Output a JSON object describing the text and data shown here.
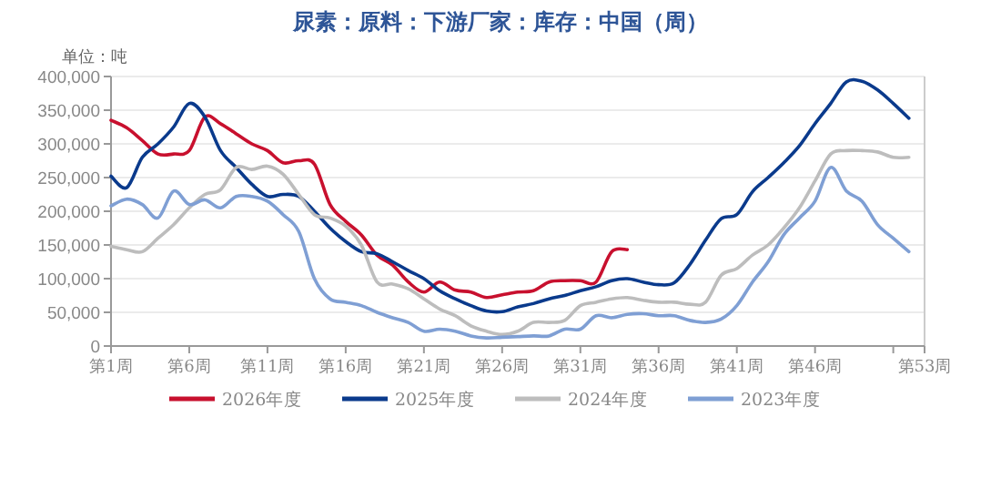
{
  "chart_data": {
    "type": "line",
    "title": "尿素：原料：下游厂家：库存：中国（周）",
    "ylabel": "单位：吨",
    "categories": [
      "第1周",
      null,
      null,
      null,
      null,
      "第6周",
      null,
      null,
      null,
      null,
      "第11周",
      null,
      null,
      null,
      null,
      "第16周",
      null,
      null,
      null,
      null,
      "第21周",
      null,
      null,
      null,
      null,
      "第26周",
      null,
      null,
      null,
      null,
      "第31周",
      null,
      null,
      null,
      null,
      "第36周",
      null,
      null,
      null,
      null,
      "第41周",
      null,
      null,
      null,
      null,
      "第46周",
      null,
      null,
      null,
      null,
      null,
      null,
      "第53周"
    ],
    "ylim": [
      0,
      400000
    ],
    "yticks": [
      0,
      {
        "value": 50000,
        "label": "50,000"
      },
      {
        "value": 100000,
        "label": "100,000"
      },
      {
        "value": 150000,
        "label": "150,000"
      },
      {
        "value": 200000,
        "label": "200,000"
      },
      {
        "value": 250000,
        "label": "250,000"
      },
      {
        "value": 300000,
        "label": "300,000"
      },
      {
        "value": 350000,
        "label": "350,000"
      },
      {
        "value": 400000,
        "label": "400,000"
      }
    ],
    "grid": "y",
    "legend": "bottom",
    "marker": "none",
    "line_style": "solid",
    "series": [
      {
        "name": "2026年度",
        "color": "#c8102e",
        "values": [
          335000,
          324000,
          305000,
          285000,
          285000,
          290000,
          340000,
          330000,
          315000,
          300000,
          290000,
          272000,
          275000,
          270000,
          210000,
          185000,
          165000,
          135000,
          120000,
          95000,
          80000,
          95000,
          83000,
          80000,
          72000,
          76000,
          80000,
          82000,
          95000,
          97000,
          97000,
          95000,
          140000,
          143000,
          null,
          null,
          null,
          null,
          null,
          null,
          null,
          null,
          null,
          null,
          null,
          null,
          null,
          null,
          null,
          null,
          null,
          null,
          null
        ]
      },
      {
        "name": "2025年度",
        "color": "#0a3a8c",
        "values": [
          252000,
          235000,
          280000,
          300000,
          325000,
          360000,
          340000,
          290000,
          265000,
          240000,
          222000,
          225000,
          222000,
          200000,
          175000,
          155000,
          140000,
          137000,
          125000,
          112000,
          100000,
          82000,
          70000,
          60000,
          52000,
          51000,
          58000,
          63000,
          70000,
          75000,
          82000,
          88000,
          97000,
          100000,
          95000,
          91000,
          94000,
          121000,
          157000,
          189000,
          195000,
          229000,
          250000,
          272000,
          297000,
          330000,
          360000,
          392000,
          393000,
          380000,
          360000,
          338000,
          null
        ]
      },
      {
        "name": "2024年度",
        "color": "#bdbdbd",
        "values": [
          148000,
          143000,
          140000,
          160000,
          180000,
          205000,
          225000,
          232000,
          265000,
          262000,
          267000,
          255000,
          225000,
          195000,
          190000,
          178000,
          150000,
          95000,
          92000,
          85000,
          70000,
          55000,
          45000,
          30000,
          22000,
          17000,
          22000,
          35000,
          35000,
          38000,
          60000,
          65000,
          70000,
          72000,
          68000,
          65000,
          65000,
          62000,
          65000,
          105000,
          115000,
          135000,
          150000,
          175000,
          205000,
          245000,
          285000,
          290000,
          290000,
          288000,
          280000,
          280000,
          null
        ]
      },
      {
        "name": "2023年度",
        "color": "#7f9fd4",
        "values": [
          208000,
          218000,
          210000,
          190000,
          230000,
          210000,
          217000,
          205000,
          222000,
          222000,
          215000,
          195000,
          170000,
          100000,
          70000,
          65000,
          60000,
          50000,
          42000,
          35000,
          22000,
          25000,
          22000,
          15000,
          12000,
          13000,
          14000,
          15000,
          15000,
          25000,
          25000,
          45000,
          42000,
          47000,
          48000,
          45000,
          45000,
          38000,
          35000,
          40000,
          60000,
          95000,
          125000,
          165000,
          190000,
          215000,
          265000,
          230000,
          215000,
          180000,
          160000,
          140000,
          null
        ]
      }
    ]
  }
}
